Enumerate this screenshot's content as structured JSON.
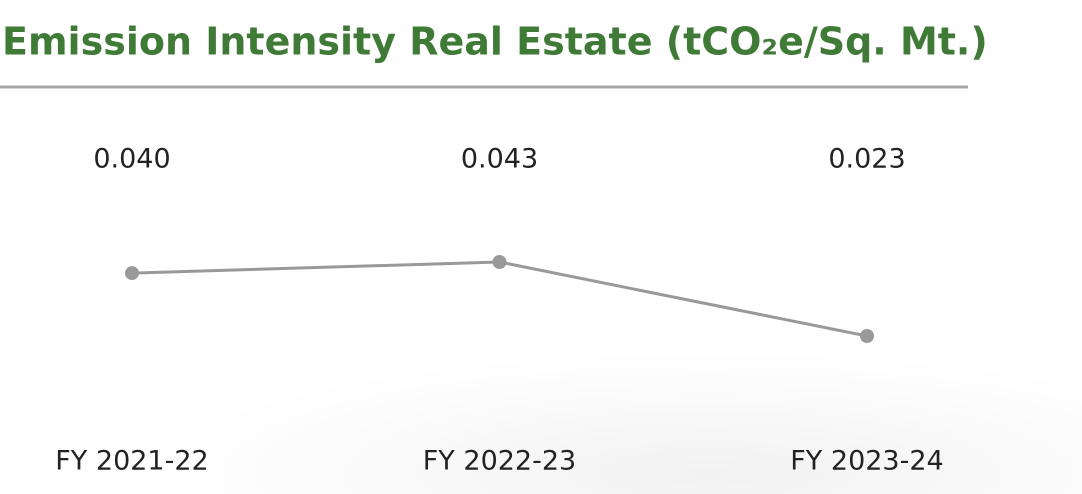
{
  "chart_data": {
    "type": "line",
    "title": "Emission Intensity Real Estate (tCO₂e/Sq. Mt.)",
    "categories": [
      "FY 2021-22",
      "FY 2022-23",
      "FY 2023-24"
    ],
    "values": [
      0.04,
      0.043,
      0.023
    ],
    "value_labels": [
      "0.040",
      "0.043",
      "0.023"
    ],
    "color": "#999999"
  }
}
